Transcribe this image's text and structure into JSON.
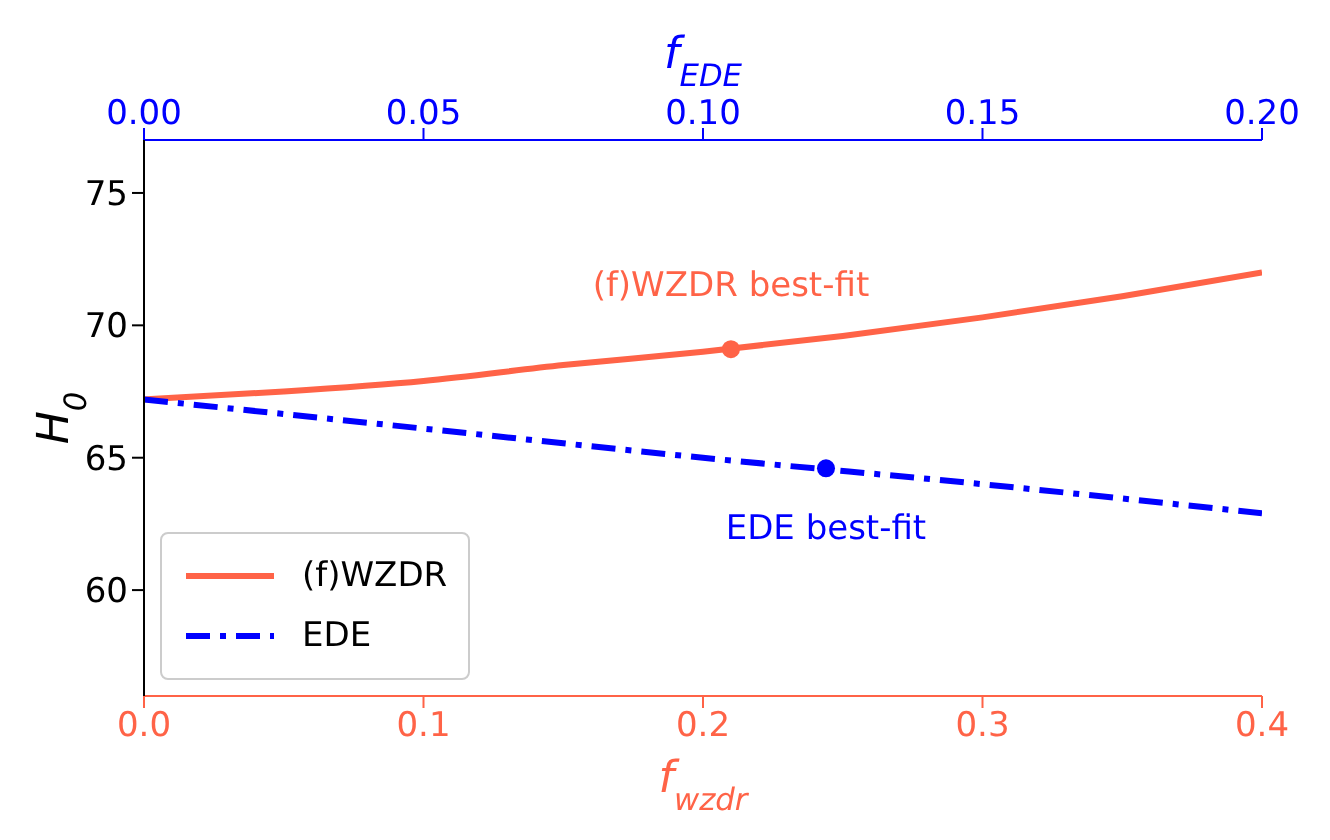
{
  "chart_data": {
    "type": "line",
    "xlabel": "f$_{wzdr}$",
    "x2label": "f$_{EDE}$",
    "ylabel": "H$_{0}$",
    "xlim": [
      0,
      0.4
    ],
    "xticks": [
      {
        "value": 0,
        "label": "0.0"
      },
      0.1,
      0.2,
      0.3,
      0.4
    ],
    "x2lim": [
      0,
      0.2
    ],
    "x2ticks": [
      {
        "value": 0,
        "label": "0.00"
      },
      0.05,
      {
        "value": 0.1,
        "label": "0.10"
      },
      0.15,
      {
        "value": 0.2,
        "label": "0.20"
      }
    ],
    "ylim": [
      56,
      77
    ],
    "yticks": [
      60,
      65,
      70,
      75
    ],
    "grid": false,
    "legend": "bottom left",
    "annotations": [
      "(f)WZDR best-fit",
      "EDE best-fit"
    ],
    "series": [
      {
        "name": "(f)WZDR",
        "color": "#ff6347",
        "line_style": "solid",
        "marker": "none",
        "x": [
          0,
          0.05,
          0.1,
          0.15,
          0.2,
          0.25,
          0.3,
          0.35,
          0.4
        ],
        "values": [
          67.2,
          67.5,
          67.9,
          68.5,
          69.0,
          69.6,
          70.3,
          71.1,
          72.0
        ]
      },
      {
        "name": "EDE",
        "axis": "x2",
        "color": "#0000ff",
        "line_style": "dashed",
        "marker": "none",
        "x": [
          0,
          0.05,
          0.1,
          0.15,
          0.2
        ],
        "values": [
          67.2,
          66.1,
          65.0,
          64.0,
          62.9
        ]
      },
      {
        "type": "scatter",
        "color": "#ff6347",
        "marker": "circle",
        "x": [
          0.21
        ],
        "values": [
          69.1
        ]
      },
      {
        "type": "scatter",
        "axis": "x2",
        "color": "#0000ff",
        "marker": "circle",
        "x": [
          0.122
        ],
        "values": [
          64.6
        ]
      }
    ]
  }
}
